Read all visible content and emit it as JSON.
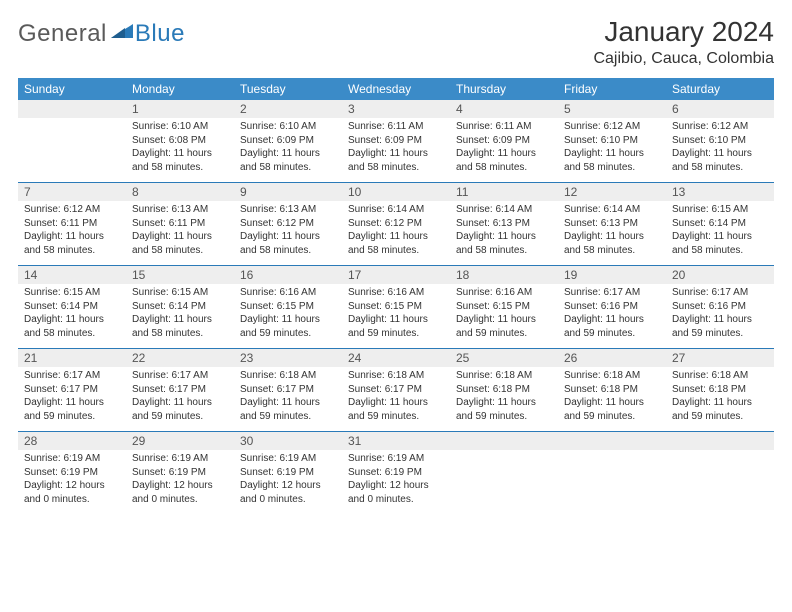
{
  "logo": {
    "general": "General",
    "blue": "Blue"
  },
  "title": "January 2024",
  "location": "Cajibio, Cauca, Colombia",
  "colors": {
    "header_bg": "#3b8bc8",
    "header_text": "#ffffff",
    "daynum_bg": "#eeeeee",
    "daynum_text": "#555555",
    "cell_text": "#333333",
    "rule": "#2a7ab8",
    "logo_gray": "#5a5a5a",
    "logo_blue": "#2a7ab8",
    "page_bg": "#ffffff"
  },
  "dow": [
    "Sunday",
    "Monday",
    "Tuesday",
    "Wednesday",
    "Thursday",
    "Friday",
    "Saturday"
  ],
  "weeks": [
    {
      "nums": [
        "",
        "1",
        "2",
        "3",
        "4",
        "5",
        "6"
      ],
      "cells": [
        null,
        {
          "sunrise": "Sunrise: 6:10 AM",
          "sunset": "Sunset: 6:08 PM",
          "day1": "Daylight: 11 hours",
          "day2": "and 58 minutes."
        },
        {
          "sunrise": "Sunrise: 6:10 AM",
          "sunset": "Sunset: 6:09 PM",
          "day1": "Daylight: 11 hours",
          "day2": "and 58 minutes."
        },
        {
          "sunrise": "Sunrise: 6:11 AM",
          "sunset": "Sunset: 6:09 PM",
          "day1": "Daylight: 11 hours",
          "day2": "and 58 minutes."
        },
        {
          "sunrise": "Sunrise: 6:11 AM",
          "sunset": "Sunset: 6:09 PM",
          "day1": "Daylight: 11 hours",
          "day2": "and 58 minutes."
        },
        {
          "sunrise": "Sunrise: 6:12 AM",
          "sunset": "Sunset: 6:10 PM",
          "day1": "Daylight: 11 hours",
          "day2": "and 58 minutes."
        },
        {
          "sunrise": "Sunrise: 6:12 AM",
          "sunset": "Sunset: 6:10 PM",
          "day1": "Daylight: 11 hours",
          "day2": "and 58 minutes."
        }
      ]
    },
    {
      "nums": [
        "7",
        "8",
        "9",
        "10",
        "11",
        "12",
        "13"
      ],
      "cells": [
        {
          "sunrise": "Sunrise: 6:12 AM",
          "sunset": "Sunset: 6:11 PM",
          "day1": "Daylight: 11 hours",
          "day2": "and 58 minutes."
        },
        {
          "sunrise": "Sunrise: 6:13 AM",
          "sunset": "Sunset: 6:11 PM",
          "day1": "Daylight: 11 hours",
          "day2": "and 58 minutes."
        },
        {
          "sunrise": "Sunrise: 6:13 AM",
          "sunset": "Sunset: 6:12 PM",
          "day1": "Daylight: 11 hours",
          "day2": "and 58 minutes."
        },
        {
          "sunrise": "Sunrise: 6:14 AM",
          "sunset": "Sunset: 6:12 PM",
          "day1": "Daylight: 11 hours",
          "day2": "and 58 minutes."
        },
        {
          "sunrise": "Sunrise: 6:14 AM",
          "sunset": "Sunset: 6:13 PM",
          "day1": "Daylight: 11 hours",
          "day2": "and 58 minutes."
        },
        {
          "sunrise": "Sunrise: 6:14 AM",
          "sunset": "Sunset: 6:13 PM",
          "day1": "Daylight: 11 hours",
          "day2": "and 58 minutes."
        },
        {
          "sunrise": "Sunrise: 6:15 AM",
          "sunset": "Sunset: 6:14 PM",
          "day1": "Daylight: 11 hours",
          "day2": "and 58 minutes."
        }
      ]
    },
    {
      "nums": [
        "14",
        "15",
        "16",
        "17",
        "18",
        "19",
        "20"
      ],
      "cells": [
        {
          "sunrise": "Sunrise: 6:15 AM",
          "sunset": "Sunset: 6:14 PM",
          "day1": "Daylight: 11 hours",
          "day2": "and 58 minutes."
        },
        {
          "sunrise": "Sunrise: 6:15 AM",
          "sunset": "Sunset: 6:14 PM",
          "day1": "Daylight: 11 hours",
          "day2": "and 58 minutes."
        },
        {
          "sunrise": "Sunrise: 6:16 AM",
          "sunset": "Sunset: 6:15 PM",
          "day1": "Daylight: 11 hours",
          "day2": "and 59 minutes."
        },
        {
          "sunrise": "Sunrise: 6:16 AM",
          "sunset": "Sunset: 6:15 PM",
          "day1": "Daylight: 11 hours",
          "day2": "and 59 minutes."
        },
        {
          "sunrise": "Sunrise: 6:16 AM",
          "sunset": "Sunset: 6:15 PM",
          "day1": "Daylight: 11 hours",
          "day2": "and 59 minutes."
        },
        {
          "sunrise": "Sunrise: 6:17 AM",
          "sunset": "Sunset: 6:16 PM",
          "day1": "Daylight: 11 hours",
          "day2": "and 59 minutes."
        },
        {
          "sunrise": "Sunrise: 6:17 AM",
          "sunset": "Sunset: 6:16 PM",
          "day1": "Daylight: 11 hours",
          "day2": "and 59 minutes."
        }
      ]
    },
    {
      "nums": [
        "21",
        "22",
        "23",
        "24",
        "25",
        "26",
        "27"
      ],
      "cells": [
        {
          "sunrise": "Sunrise: 6:17 AM",
          "sunset": "Sunset: 6:17 PM",
          "day1": "Daylight: 11 hours",
          "day2": "and 59 minutes."
        },
        {
          "sunrise": "Sunrise: 6:17 AM",
          "sunset": "Sunset: 6:17 PM",
          "day1": "Daylight: 11 hours",
          "day2": "and 59 minutes."
        },
        {
          "sunrise": "Sunrise: 6:18 AM",
          "sunset": "Sunset: 6:17 PM",
          "day1": "Daylight: 11 hours",
          "day2": "and 59 minutes."
        },
        {
          "sunrise": "Sunrise: 6:18 AM",
          "sunset": "Sunset: 6:17 PM",
          "day1": "Daylight: 11 hours",
          "day2": "and 59 minutes."
        },
        {
          "sunrise": "Sunrise: 6:18 AM",
          "sunset": "Sunset: 6:18 PM",
          "day1": "Daylight: 11 hours",
          "day2": "and 59 minutes."
        },
        {
          "sunrise": "Sunrise: 6:18 AM",
          "sunset": "Sunset: 6:18 PM",
          "day1": "Daylight: 11 hours",
          "day2": "and 59 minutes."
        },
        {
          "sunrise": "Sunrise: 6:18 AM",
          "sunset": "Sunset: 6:18 PM",
          "day1": "Daylight: 11 hours",
          "day2": "and 59 minutes."
        }
      ]
    },
    {
      "nums": [
        "28",
        "29",
        "30",
        "31",
        "",
        "",
        ""
      ],
      "cells": [
        {
          "sunrise": "Sunrise: 6:19 AM",
          "sunset": "Sunset: 6:19 PM",
          "day1": "Daylight: 12 hours",
          "day2": "and 0 minutes."
        },
        {
          "sunrise": "Sunrise: 6:19 AM",
          "sunset": "Sunset: 6:19 PM",
          "day1": "Daylight: 12 hours",
          "day2": "and 0 minutes."
        },
        {
          "sunrise": "Sunrise: 6:19 AM",
          "sunset": "Sunset: 6:19 PM",
          "day1": "Daylight: 12 hours",
          "day2": "and 0 minutes."
        },
        {
          "sunrise": "Sunrise: 6:19 AM",
          "sunset": "Sunset: 6:19 PM",
          "day1": "Daylight: 12 hours",
          "day2": "and 0 minutes."
        },
        null,
        null,
        null
      ]
    }
  ]
}
